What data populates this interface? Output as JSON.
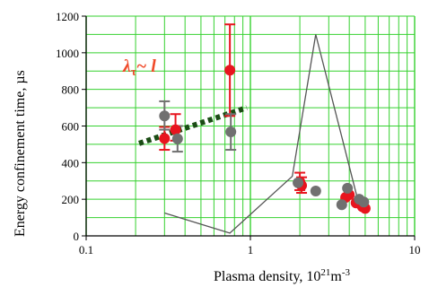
{
  "chart_data": {
    "type": "scatter",
    "title": "",
    "xlabel": "Plasma density, 10",
    "xlabel_exp": "21",
    "xlabel_unit": "m",
    "xlabel_unit_exp": "-3",
    "ylabel": "Energy confinement time, µs",
    "x_scale": "log",
    "xlim": [
      0.1,
      10
    ],
    "ylim": [
      0,
      1200
    ],
    "x_ticks": [
      0.1,
      1,
      10
    ],
    "x_tick_labels": [
      "0.1",
      "1",
      "10"
    ],
    "y_ticks": [
      0,
      200,
      400,
      600,
      800,
      1000,
      1200
    ],
    "y_tick_labels": [
      "0",
      "200",
      "400",
      "600",
      "800",
      "1000",
      "1200"
    ],
    "grid": true,
    "colors": {
      "background": "#ffffff",
      "plot_background": "#ffffff",
      "grid": "#35d12f",
      "red_series": "#e8141e",
      "gray_series": "#707070",
      "line": "#555555",
      "fit": "#1a4d14",
      "annotation": "#f04a2a"
    },
    "annotation": {
      "text_main": "λ",
      "text_sub": "τ",
      "text_rest": "~ l",
      "x": 0.31,
      "y": 905
    },
    "series": [
      {
        "marker": "circle",
        "color": "#e8141e",
        "points": [
          {
            "x": 0.3,
            "y": 532,
            "err_low": 470,
            "err_high": 595
          },
          {
            "x": 0.35,
            "y": 580,
            "err_low": 520,
            "err_high": 665
          },
          {
            "x": 0.75,
            "y": 905,
            "err_low": 655,
            "err_high": 1155
          },
          {
            "x": 2.0,
            "y": 295,
            "err_low": 250,
            "err_high": 345
          },
          {
            "x": 2.05,
            "y": 275,
            "err_low": 235,
            "err_high": 320
          },
          {
            "x": 3.8,
            "y": 210
          },
          {
            "x": 4.0,
            "y": 225
          },
          {
            "x": 4.4,
            "y": 180
          },
          {
            "x": 4.8,
            "y": 160
          },
          {
            "x": 5.0,
            "y": 150
          }
        ]
      },
      {
        "marker": "circle",
        "color": "#707070",
        "points": [
          {
            "x": 0.3,
            "y": 655,
            "err_low": 580,
            "err_high": 735
          },
          {
            "x": 0.36,
            "y": 530,
            "err_low": 460,
            "err_high": 600
          },
          {
            "x": 0.76,
            "y": 568,
            "err_low": 470,
            "err_high": 665
          },
          {
            "x": 1.95,
            "y": 290
          },
          {
            "x": 2.5,
            "y": 245
          },
          {
            "x": 3.6,
            "y": 170
          },
          {
            "x": 3.9,
            "y": 260
          },
          {
            "x": 4.6,
            "y": 200
          },
          {
            "x": 4.9,
            "y": 185
          }
        ]
      }
    ],
    "lines": [
      {
        "style": "solid",
        "color": "#555555",
        "points": [
          [
            0.3,
            125
          ],
          [
            0.75,
            15
          ],
          [
            1.8,
            325
          ],
          [
            2.5,
            1100
          ],
          [
            4.5,
            200
          ]
        ]
      },
      {
        "style": "dotted",
        "color": "#1a4d14",
        "points": [
          [
            0.21,
            505
          ],
          [
            0.95,
            700
          ]
        ]
      }
    ]
  }
}
